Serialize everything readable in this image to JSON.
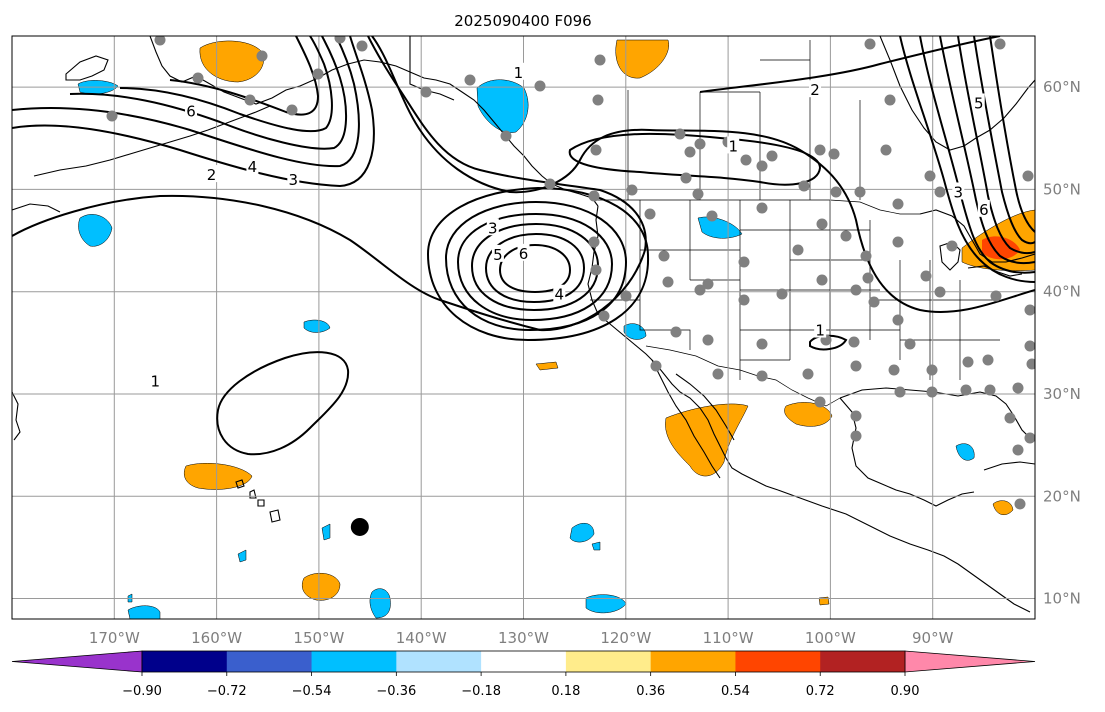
{
  "title": "2025090400 F096",
  "map": {
    "projection": "plate-carree",
    "lon_range": [
      -180,
      -80
    ],
    "lat_range": [
      8,
      65
    ],
    "lon_ticks": [
      {
        "value": -170,
        "label": "170°W"
      },
      {
        "value": -160,
        "label": "160°W"
      },
      {
        "value": -150,
        "label": "150°W"
      },
      {
        "value": -140,
        "label": "140°W"
      },
      {
        "value": -130,
        "label": "130°W"
      },
      {
        "value": -120,
        "label": "120°W"
      },
      {
        "value": -110,
        "label": "110°W"
      },
      {
        "value": -100,
        "label": "100°W"
      },
      {
        "value": -90,
        "label": "90°W"
      }
    ],
    "lat_ticks": [
      {
        "value": 10,
        "label": "10°N"
      },
      {
        "value": 20,
        "label": "20°N"
      },
      {
        "value": 30,
        "label": "30°N"
      },
      {
        "value": 40,
        "label": "40°N"
      },
      {
        "value": 50,
        "label": "50°N"
      },
      {
        "value": 60,
        "label": "60°N"
      }
    ],
    "grid": true,
    "contour_labels": [
      {
        "text": "1",
        "lon": -130.5,
        "lat": 61.5
      },
      {
        "text": "2",
        "lon": -101.5,
        "lat": 59.8
      },
      {
        "text": "5",
        "lon": -85.5,
        "lat": 58.5
      },
      {
        "text": "6",
        "lon": -162.5,
        "lat": 57.7
      },
      {
        "text": "1",
        "lon": -109.5,
        "lat": 54.3
      },
      {
        "text": "4",
        "lon": -156.5,
        "lat": 52.3
      },
      {
        "text": "2",
        "lon": -160.5,
        "lat": 51.5
      },
      {
        "text": "3",
        "lon": -152.5,
        "lat": 51.0
      },
      {
        "text": "3",
        "lon": -87.5,
        "lat": 49.8
      },
      {
        "text": "6",
        "lon": -85.0,
        "lat": 48.1
      },
      {
        "text": "3",
        "lon": -133.0,
        "lat": 46.3
      },
      {
        "text": "5",
        "lon": -132.5,
        "lat": 43.7
      },
      {
        "text": "6",
        "lon": -130.0,
        "lat": 43.8
      },
      {
        "text": "4",
        "lon": -126.5,
        "lat": 39.8
      },
      {
        "text": "1",
        "lon": -101.0,
        "lat": 36.3
      },
      {
        "text": "1",
        "lon": -166.0,
        "lat": 31.3
      }
    ],
    "station_marker": {
      "lon": -146.0,
      "lat": 17.0
    },
    "colors": {
      "contour": "#000000",
      "stations": "#808080",
      "grid": "#9a9a9a"
    }
  },
  "colorbar": {
    "ticks": [
      "−0.90",
      "−0.72",
      "−0.54",
      "−0.36",
      "−0.18",
      "0.18",
      "0.36",
      "0.54",
      "0.72",
      "0.90"
    ],
    "colors": [
      "#9933cc",
      "#00008b",
      "#3a5fcd",
      "#00bfff",
      "#b0e2ff",
      "#ffffff",
      "#ffec8b",
      "#ffa500",
      "#ff4500",
      "#b22222",
      "#ff88aa"
    ],
    "extend": "both"
  }
}
